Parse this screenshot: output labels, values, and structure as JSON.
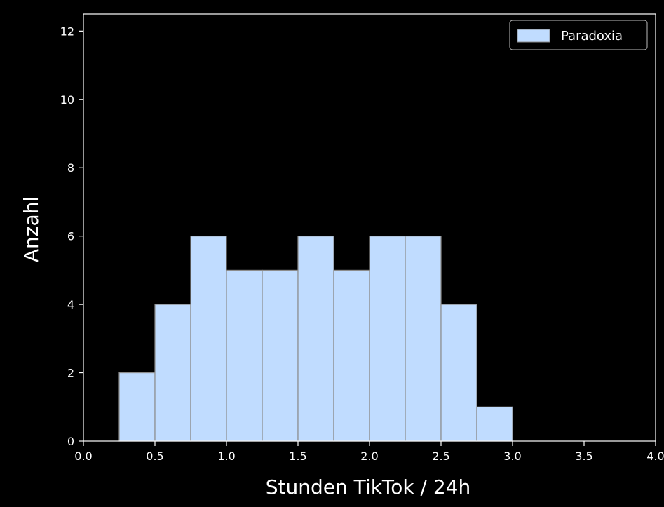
{
  "chart_data": {
    "type": "bar",
    "histogram": true,
    "bin_edges": [
      0.25,
      0.5,
      0.75,
      1.0,
      1.25,
      1.5,
      1.75,
      2.0,
      2.25,
      2.5,
      2.75,
      3.0
    ],
    "values": [
      2,
      4,
      6,
      5,
      5,
      6,
      5,
      6,
      6,
      4,
      1
    ],
    "series": [
      {
        "name": "Paradoxia",
        "values": [
          2,
          4,
          6,
          5,
          5,
          6,
          5,
          6,
          6,
          4,
          1
        ]
      }
    ],
    "xlabel": "Stunden TikTok / 24h",
    "ylabel": "Anzahl",
    "xlim": [
      0,
      4
    ],
    "ylim": [
      0,
      12.5
    ],
    "xticks": [
      "0.0",
      "0.5",
      "1.0",
      "1.5",
      "2.0",
      "2.5",
      "3.0",
      "3.5",
      "4.0"
    ],
    "yticks": [
      "0",
      "2",
      "4",
      "6",
      "8",
      "10",
      "12"
    ],
    "grid": false,
    "legend_position": "top-right",
    "colors": {
      "background": "#000000",
      "bar_fill": "#c0dcff",
      "bar_edge": "#8c8c8c",
      "axis": "#ffffff",
      "text": "#ffffff"
    }
  }
}
